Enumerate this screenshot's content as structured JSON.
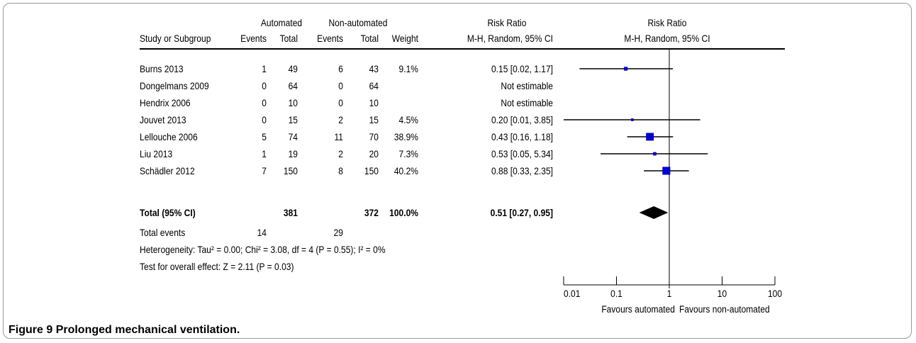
{
  "header": {
    "group1": "Automated",
    "group2": "Non-automated",
    "rr_numeric": "Risk Ratio",
    "rr_plot": "Risk Ratio",
    "col_study": "Study or Subgroup",
    "col_events1": "Events",
    "col_total1": "Total",
    "col_events2": "Events",
    "col_total2": "Total",
    "col_weight": "Weight",
    "col_method": "M-H, Random, 95% CI",
    "col_method_plot": "M-H, Random, 95% CI"
  },
  "rows": [
    {
      "study": "Burns 2013",
      "e1": "1",
      "t1": "49",
      "e2": "6",
      "t2": "43",
      "weight": "9.1%",
      "ci": "0.15 [0.02, 1.17]"
    },
    {
      "study": "Dongelmans 2009",
      "e1": "0",
      "t1": "64",
      "e2": "0",
      "t2": "64",
      "weight": "",
      "ci": "Not estimable"
    },
    {
      "study": "Hendrix 2006",
      "e1": "0",
      "t1": "10",
      "e2": "0",
      "t2": "10",
      "weight": "",
      "ci": "Not estimable"
    },
    {
      "study": "Jouvet 2013",
      "e1": "0",
      "t1": "15",
      "e2": "2",
      "t2": "15",
      "weight": "4.5%",
      "ci": "0.20 [0.01, 3.85]"
    },
    {
      "study": "Lellouche 2006",
      "e1": "5",
      "t1": "74",
      "e2": "11",
      "t2": "70",
      "weight": "38.9%",
      "ci": "0.43 [0.16, 1.18]"
    },
    {
      "study": "Liu 2013",
      "e1": "1",
      "t1": "19",
      "e2": "2",
      "t2": "20",
      "weight": "7.3%",
      "ci": "0.53 [0.05, 5.34]"
    },
    {
      "study": "Schädler 2012",
      "e1": "7",
      "t1": "150",
      "e2": "8",
      "t2": "150",
      "weight": "40.2%",
      "ci": "0.88 [0.33, 2.35]"
    }
  ],
  "total": {
    "label": "Total (95% CI)",
    "t1": "381",
    "t2": "372",
    "weight": "100.0%",
    "ci": "0.51 [0.27, 0.95]"
  },
  "total_events": {
    "label": "Total events",
    "e1": "14",
    "e2": "29"
  },
  "heterogeneity": "Heterogeneity: Tau² = 0.00; Chi² = 3.08, df = 4 (P = 0.55); I² = 0%",
  "overall_effect": "Test for overall effect: Z = 2.11 (P = 0.03)",
  "axis": {
    "ticks": [
      "0.01",
      "0.1",
      "1",
      "10",
      "100"
    ],
    "favours_left": "Favours automated",
    "favours_right": "Favours non-automated"
  },
  "caption": {
    "number": "Figure 9",
    "text": "Prolonged mechanical ventilation."
  },
  "colors": {
    "marker": "#0000cc",
    "line": "#000000",
    "border": "#9a9a9a"
  },
  "chart_data": {
    "type": "scatter",
    "scale": "log",
    "xlim": [
      0.01,
      100
    ],
    "reference_line": 1,
    "studies": [
      {
        "name": "Burns 2013",
        "rr": 0.15,
        "lo": 0.02,
        "hi": 1.17,
        "weight": 9.1
      },
      {
        "name": "Jouvet 2013",
        "rr": 0.2,
        "lo": 0.01,
        "hi": 3.85,
        "weight": 4.5
      },
      {
        "name": "Lellouche 2006",
        "rr": 0.43,
        "lo": 0.16,
        "hi": 1.18,
        "weight": 38.9
      },
      {
        "name": "Liu 2013",
        "rr": 0.53,
        "lo": 0.05,
        "hi": 5.34,
        "weight": 7.3
      },
      {
        "name": "Schädler 2012",
        "rr": 0.88,
        "lo": 0.33,
        "hi": 2.35,
        "weight": 40.2
      }
    ],
    "pooled": {
      "rr": 0.51,
      "lo": 0.27,
      "hi": 0.95
    }
  }
}
